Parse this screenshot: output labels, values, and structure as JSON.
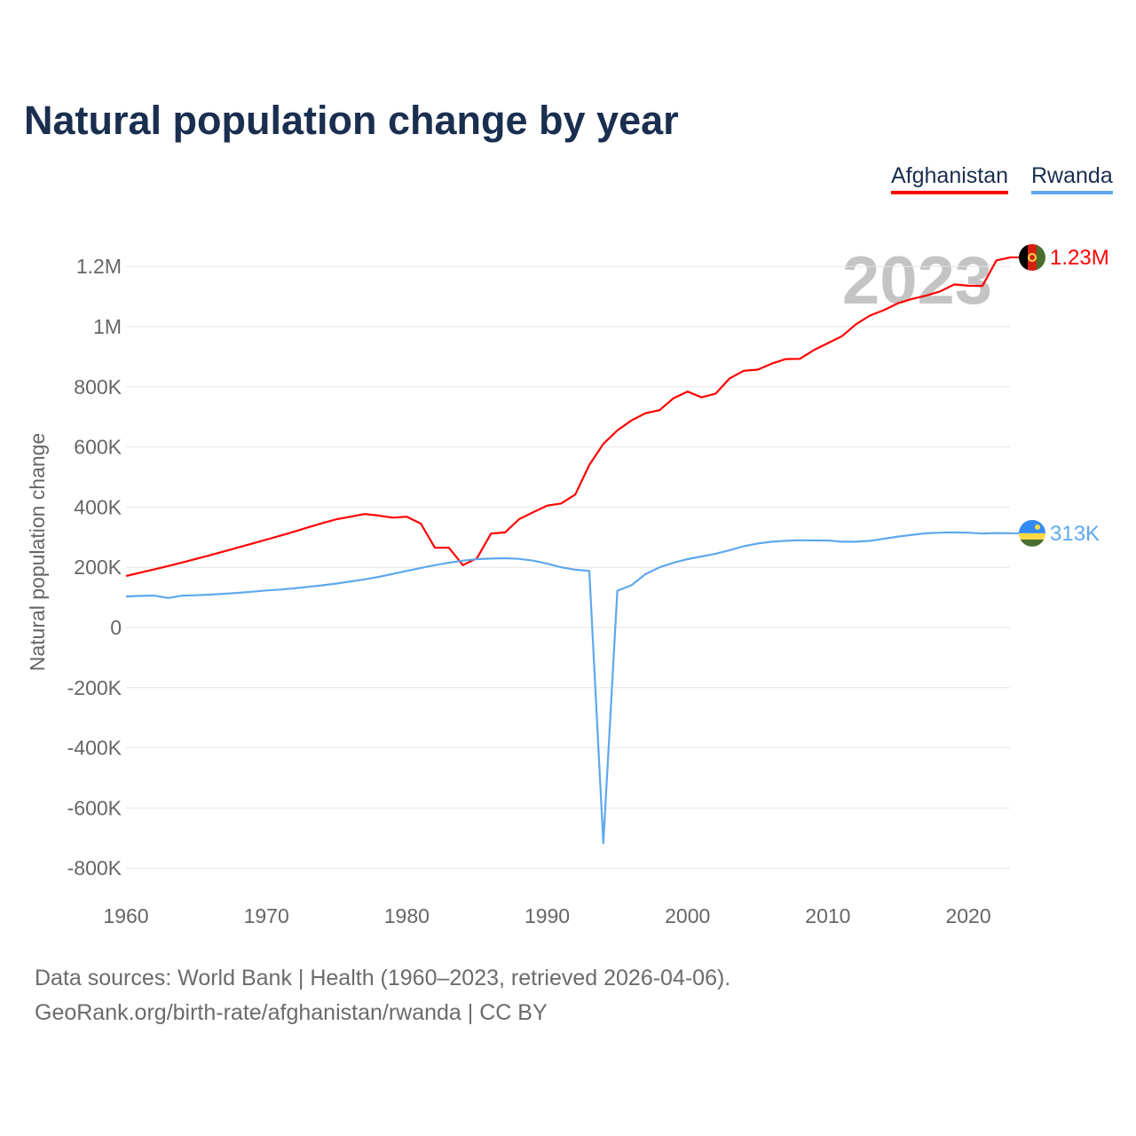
{
  "title": "Natural population change by year",
  "legend": [
    "Afghanistan",
    "Rwanda"
  ],
  "footer": {
    "line1": "Data sources: World Bank | Health (1960–2023, retrieved 2026-04-06).",
    "line2": "GeoRank.org/birth-rate/afghanistan/rwanda | CC BY"
  },
  "chart_data": {
    "type": "line",
    "title": "Natural population change by year",
    "ylabel": "Natural population change",
    "xlabel": "",
    "year_watermark": "2023",
    "xlim": [
      1960,
      2023
    ],
    "ylim": [
      -800000,
      1200000
    ],
    "x_ticks": [
      1960,
      1970,
      1980,
      1990,
      2000,
      2010,
      2020
    ],
    "y_ticks": [
      {
        "v": 1200000,
        "l": "1.2M"
      },
      {
        "v": 1000000,
        "l": "1M"
      },
      {
        "v": 800000,
        "l": "800K"
      },
      {
        "v": 600000,
        "l": "600K"
      },
      {
        "v": 400000,
        "l": "400K"
      },
      {
        "v": 200000,
        "l": "200K"
      },
      {
        "v": 0,
        "l": "0"
      },
      {
        "v": -200000,
        "l": "-200K"
      },
      {
        "v": -400000,
        "l": "-400K"
      },
      {
        "v": -600000,
        "l": "-600K"
      },
      {
        "v": -800000,
        "l": "-800K"
      }
    ],
    "grid": true,
    "legend_position": "top-right",
    "x_start": 1960,
    "series": [
      {
        "name": "Afghanistan",
        "color": "#ff0000",
        "end_label": "1.23M",
        "flag": "afghanistan-flag",
        "values": [
          171,
          182,
          193,
          204,
          216,
          228,
          240,
          253,
          266,
          279,
          292,
          305,
          319,
          333,
          347,
          360,
          368,
          377,
          372,
          365,
          368,
          345,
          265,
          265,
          207,
          230,
          312,
          316,
          360,
          383,
          405,
          412,
          442,
          540,
          610,
          655,
          688,
          712,
          722,
          762,
          784,
          765,
          777,
          828,
          853,
          857,
          877,
          892,
          893,
          922,
          945,
          968,
          1008,
          1037,
          1055,
          1078,
          1092,
          1103,
          1117,
          1140,
          1136,
          1135,
          1220,
          1230
        ],
        "unit": "thousand"
      },
      {
        "name": "Rwanda",
        "color": "#5ea8ee",
        "end_label": "313K",
        "flag": "rwanda-flag",
        "values": [
          103,
          105,
          106,
          98,
          106,
          107,
          109,
          112,
          115,
          119,
          123,
          126,
          130,
          135,
          140,
          146,
          153,
          160,
          168,
          178,
          188,
          198,
          207,
          215,
          222,
          227,
          229,
          230,
          228,
          222,
          212,
          200,
          192,
          188,
          -717,
          122,
          140,
          177,
          200,
          215,
          227,
          236,
          245,
          257,
          270,
          279,
          285,
          288,
          290,
          289,
          289,
          285,
          285,
          288,
          295,
          302,
          308,
          313,
          315,
          316,
          315,
          312,
          314,
          313
        ],
        "unit": "thousand"
      }
    ]
  }
}
